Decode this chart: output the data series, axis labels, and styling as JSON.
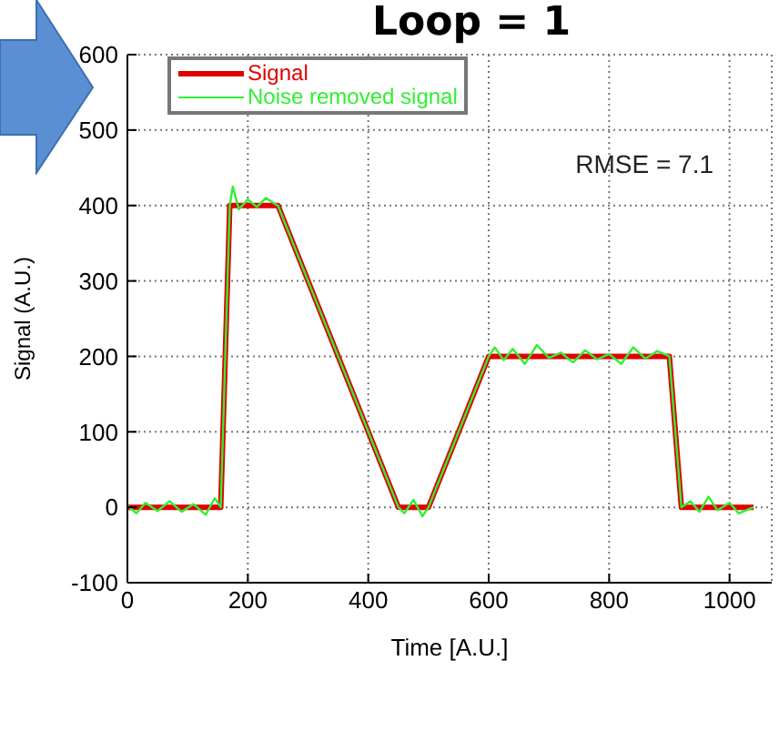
{
  "chart_data": {
    "type": "line",
    "title": "Loop = 1",
    "xlabel": "Time [A.U.]",
    "ylabel": "Signal (A.U.)",
    "annotations": [
      "RMSE = 7.1"
    ],
    "xlim": [
      0,
      1070
    ],
    "xticks": [
      0,
      200,
      400,
      600,
      800,
      1000
    ],
    "ylim": [
      -100,
      600
    ],
    "yticks": [
      -100,
      0,
      100,
      200,
      300,
      400,
      500,
      600
    ],
    "grid": true,
    "legend": "top left",
    "line_style": "solid",
    "series": [
      {
        "name": "Signal",
        "color": "#e00000",
        "x": [
          0,
          155,
          170,
          250,
          450,
          500,
          600,
          900,
          920,
          1040
        ],
        "values": [
          0,
          0,
          400,
          400,
          0,
          0,
          200,
          200,
          0,
          0
        ]
      },
      {
        "name": "Noise removed signal",
        "color": "#33ee33",
        "x": [
          0,
          15,
          30,
          50,
          70,
          90,
          110,
          130,
          145,
          155,
          170,
          175,
          185,
          200,
          215,
          230,
          245,
          250,
          300,
          350,
          400,
          450,
          460,
          475,
          490,
          500,
          550,
          600,
          610,
          625,
          640,
          660,
          680,
          700,
          720,
          740,
          760,
          780,
          800,
          820,
          840,
          860,
          880,
          900,
          920,
          935,
          950,
          965,
          980,
          1000,
          1015,
          1040
        ],
        "values": [
          2,
          -8,
          6,
          -5,
          8,
          -6,
          4,
          -10,
          12,
          0,
          400,
          425,
          395,
          408,
          398,
          410,
          402,
          400,
          300,
          200,
          100,
          0,
          -8,
          10,
          -12,
          0,
          100,
          200,
          212,
          195,
          210,
          190,
          215,
          198,
          205,
          192,
          208,
          196,
          203,
          190,
          212,
          197,
          207,
          200,
          0,
          8,
          -6,
          14,
          -4,
          6,
          -8,
          0
        ]
      }
    ]
  }
}
